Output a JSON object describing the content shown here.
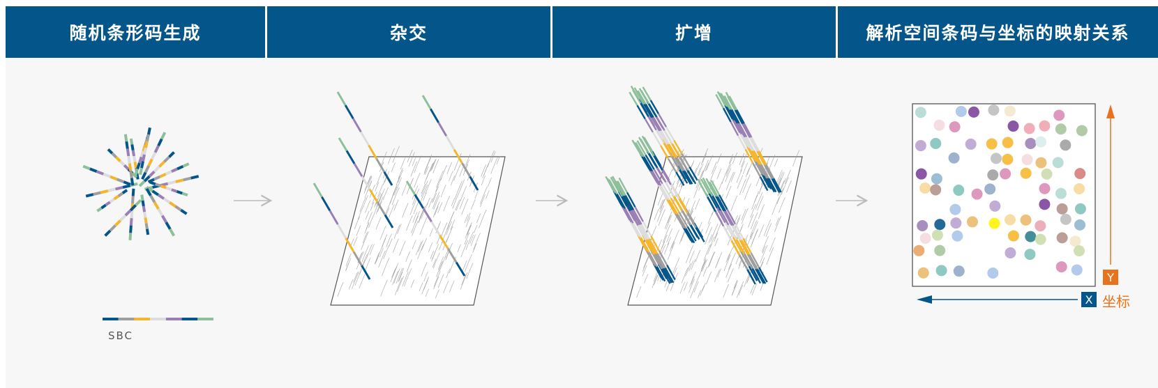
{
  "headers": [
    {
      "label": "随机条形码生成"
    },
    {
      "label": "杂交"
    },
    {
      "label": "扩增"
    },
    {
      "label": "解析空间条码与坐标的映射关系"
    }
  ],
  "sbc_label": "SBC",
  "axis": {
    "y_label": "Y",
    "x_label": "X",
    "coord_label": "坐标"
  },
  "colors": {
    "header_bg": "#04558a",
    "barcode_segments": [
      "#04558a",
      "#9e9e9e",
      "#f6b62c",
      "#dddddd",
      "#9a7fb4",
      "#04558a",
      "#8cbf9a"
    ],
    "accent_orange": "#e8731e"
  }
}
